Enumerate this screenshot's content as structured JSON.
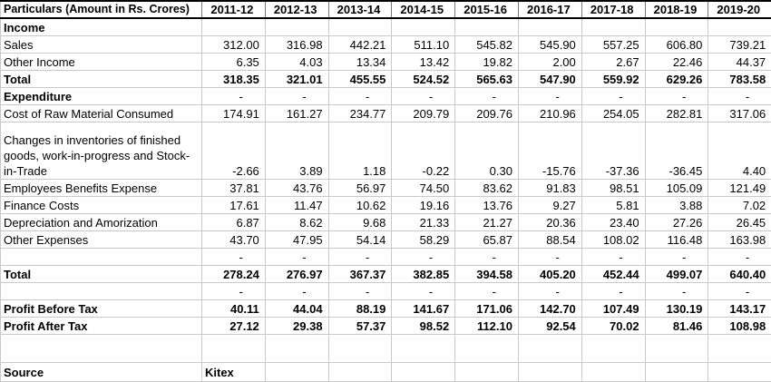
{
  "table": {
    "header": {
      "particulars": "Particulars (Amount in Rs. Crores)",
      "years": [
        "2011-12",
        "2012-13",
        "2013-14",
        "2014-15",
        "2015-16",
        "2016-17",
        "2017-18",
        "2018-19",
        "2019-20"
      ]
    },
    "rows": [
      {
        "name": "row-income-section",
        "label": "Income",
        "bold": true,
        "values": [
          "",
          "",
          "",
          "",
          "",
          "",
          "",
          "",
          ""
        ]
      },
      {
        "name": "row-sales",
        "label": "Sales",
        "bold": false,
        "values": [
          "312.00",
          "316.98",
          "442.21",
          "511.10",
          "545.82",
          "545.90",
          "557.25",
          "606.80",
          "739.21"
        ]
      },
      {
        "name": "row-other-income",
        "label": "Other Income",
        "bold": false,
        "values": [
          "6.35",
          "4.03",
          "13.34",
          "13.42",
          "19.82",
          "2.00",
          "2.67",
          "22.46",
          "44.37"
        ]
      },
      {
        "name": "row-income-total",
        "label": "Total",
        "bold": true,
        "values": [
          "318.35",
          "321.01",
          "455.55",
          "524.52",
          "565.63",
          "547.90",
          "559.92",
          "629.26",
          "783.58"
        ]
      },
      {
        "name": "row-expenditure-section",
        "label": "Expenditure",
        "bold": true,
        "values": [
          "-",
          "-",
          "-",
          "-",
          "-",
          "-",
          "-",
          "-",
          "-"
        ]
      },
      {
        "name": "row-raw-material",
        "label": "Cost of Raw Material Consumed",
        "bold": false,
        "values": [
          "174.91",
          "161.27",
          "234.77",
          "209.79",
          "209.76",
          "210.96",
          "254.05",
          "282.81",
          "317.06"
        ]
      },
      {
        "name": "row-inventory-changes",
        "label": "Changes in inventories of finished goods, work-in-progress and Stock-in-Trade",
        "bold": false,
        "tall": true,
        "values": [
          "-2.66",
          "3.89",
          "1.18",
          "-0.22",
          "0.30",
          "-15.76",
          "-37.36",
          "-36.45",
          "4.40"
        ]
      },
      {
        "name": "row-employee-benefits",
        "label": "Employees Benefits Expense",
        "bold": false,
        "values": [
          "37.81",
          "43.76",
          "56.97",
          "74.50",
          "83.62",
          "91.83",
          "98.51",
          "105.09",
          "121.49"
        ]
      },
      {
        "name": "row-finance-costs",
        "label": "Finance Costs",
        "bold": false,
        "values": [
          "17.61",
          "11.47",
          "10.62",
          "19.16",
          "13.76",
          "9.27",
          "5.81",
          "3.88",
          "7.02"
        ]
      },
      {
        "name": "row-depreciation",
        "label": "Depreciation and Amorization",
        "bold": false,
        "values": [
          "6.87",
          "8.62",
          "9.68",
          "21.33",
          "21.27",
          "20.36",
          "23.40",
          "27.26",
          "26.45"
        ]
      },
      {
        "name": "row-other-expenses",
        "label": "Other Expenses",
        "bold": false,
        "values": [
          "43.70",
          "47.95",
          "54.14",
          "58.29",
          "65.87",
          "88.54",
          "108.02",
          "116.48",
          "163.98"
        ]
      },
      {
        "name": "row-dash-1",
        "label": "",
        "bold": false,
        "values": [
          "-",
          "-",
          "-",
          "-",
          "-",
          "-",
          "-",
          "-",
          "-"
        ]
      },
      {
        "name": "row-expenditure-total",
        "label": "Total",
        "bold": true,
        "values": [
          "278.24",
          "276.97",
          "367.37",
          "382.85",
          "394.58",
          "405.20",
          "452.44",
          "499.07",
          "640.40"
        ]
      },
      {
        "name": "row-dash-2",
        "label": "",
        "bold": false,
        "values": [
          "-",
          "-",
          "-",
          "-",
          "-",
          "-",
          "-",
          "-",
          "-"
        ]
      },
      {
        "name": "row-profit-before-tax",
        "label": "Profit Before Tax",
        "bold": true,
        "values": [
          "40.11",
          "44.04",
          "88.19",
          "141.67",
          "171.06",
          "142.70",
          "107.49",
          "130.19",
          "143.17"
        ]
      },
      {
        "name": "row-profit-after-tax",
        "label": "Profit After Tax",
        "bold": true,
        "values": [
          "27.12",
          "29.38",
          "57.37",
          "98.52",
          "112.10",
          "92.54",
          "70.02",
          "81.46",
          "108.98"
        ]
      },
      {
        "name": "row-spacer",
        "label": "",
        "bold": false,
        "spacer": true,
        "values": [
          "",
          "",
          "",
          "",
          "",
          "",
          "",
          "",
          ""
        ]
      },
      {
        "name": "row-source",
        "label": "Source",
        "bold": true,
        "align": "left",
        "source": true,
        "values": [
          "Kitex",
          "",
          "",
          "",
          "",
          "",
          "",
          "",
          ""
        ]
      }
    ]
  },
  "colors": {
    "text": "#000000",
    "background": "#ffffff",
    "gridline": "#c9c9c9",
    "header_border": "#000000"
  }
}
